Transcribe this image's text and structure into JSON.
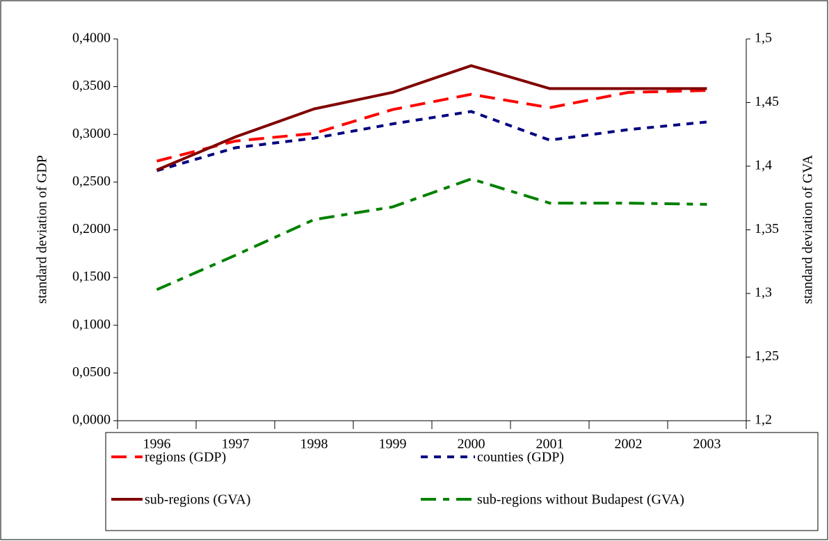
{
  "chart_data": {
    "type": "line",
    "ylabel": "standard deviation of GDP",
    "y2label": "standard deviation of GVA",
    "categories": [
      "1996",
      "1997",
      "1998",
      "1999",
      "2000",
      "2001",
      "2002",
      "2003"
    ],
    "ylim": [
      0,
      0.4
    ],
    "yticks": [
      {
        "value": 0,
        "label": "0,0000"
      },
      {
        "value": 0.05,
        "label": "0,0500"
      },
      {
        "value": 0.1,
        "label": "0,1000"
      },
      {
        "value": 0.15,
        "label": "0,1500"
      },
      {
        "value": 0.2,
        "label": "0,2000"
      },
      {
        "value": 0.25,
        "label": "0,2500"
      },
      {
        "value": 0.3,
        "label": "0,3000"
      },
      {
        "value": 0.35,
        "label": "0,3500"
      },
      {
        "value": 0.4,
        "label": "0,4000"
      }
    ],
    "y2lim": [
      1.2,
      1.5
    ],
    "y2ticks": [
      {
        "value": 1.2,
        "label": "1,2"
      },
      {
        "value": 1.25,
        "label": "1,25"
      },
      {
        "value": 1.3,
        "label": "1,3"
      },
      {
        "value": 1.35,
        "label": "1,35"
      },
      {
        "value": 1.4,
        "label": "1,4"
      },
      {
        "value": 1.45,
        "label": "1,45"
      },
      {
        "value": 1.5,
        "label": "1,5"
      }
    ],
    "grid": false,
    "legend": "bottom",
    "series": [
      {
        "name": "regions (GDP)",
        "color": "#ff0000",
        "style": "dashed",
        "values": [
          0.272,
          0.293,
          0.301,
          0.326,
          0.342,
          0.328,
          0.344,
          0.346
        ]
      },
      {
        "name": "counties (GDP)",
        "color": "#000080",
        "style": "dotted",
        "values": [
          0.262,
          0.286,
          0.296,
          0.311,
          0.324,
          0.294,
          0.305,
          0.313
        ]
      },
      {
        "name": "sub-regions (GVA)",
        "color": "#800000",
        "style": "solid",
        "axis": "y2",
        "values": [
          1.397,
          1.423,
          1.445,
          1.458,
          1.479,
          1.461,
          1.461,
          1.461
        ]
      },
      {
        "name": "sub-regions without Budapest (GVA)",
        "color": "#008000",
        "style": "dashdot",
        "axis": "y2",
        "values": [
          1.303,
          1.33,
          1.358,
          1.368,
          1.39,
          1.371,
          1.371,
          1.37
        ]
      }
    ]
  }
}
